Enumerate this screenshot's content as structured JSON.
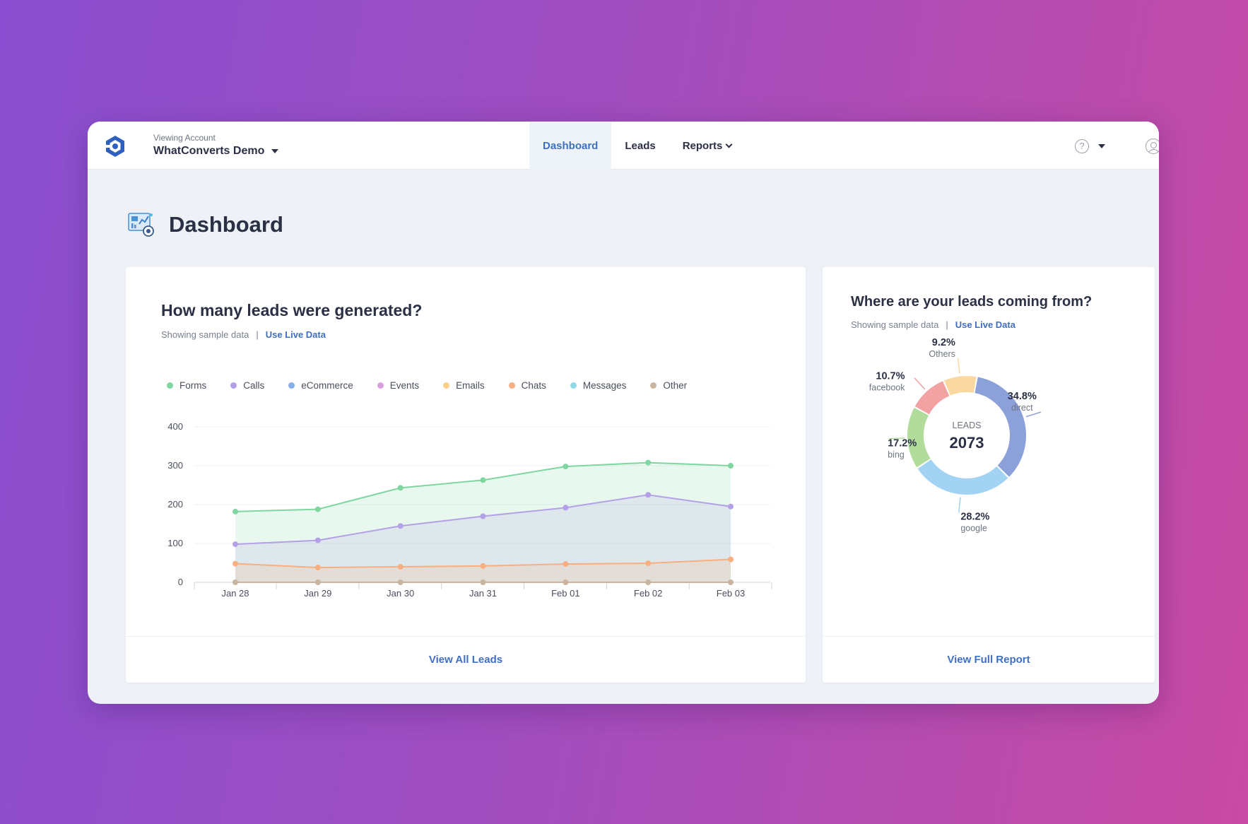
{
  "header": {
    "viewing_label": "Viewing Account",
    "account_name": "WhatConverts Demo",
    "nav": [
      {
        "label": "Dashboard",
        "active": true
      },
      {
        "label": "Leads",
        "active": false
      },
      {
        "label": "Reports",
        "active": false
      }
    ],
    "help_icon": "question-circle-icon",
    "user_icon": "user-circle-icon"
  },
  "page": {
    "title": "Dashboard"
  },
  "leads_card": {
    "title": "How many leads were generated?",
    "subtitle": "Showing sample data",
    "separator": "|",
    "live_link": "Use Live Data",
    "footer_link": "View All Leads"
  },
  "sources_card": {
    "title": "Where are your leads coming from?",
    "subtitle": "Showing sample data",
    "separator": "|",
    "live_link": "Use Live Data",
    "footer_link": "View Full Report"
  },
  "colors": {
    "accent": "#3f6fc1",
    "forms": "#7fd6a0",
    "calls": "#b3a0e6",
    "ecommerce": "#86aee8",
    "events": "#d9a0e0",
    "emails": "#f7cf87",
    "chats": "#f7ae80",
    "messages": "#8fd8e6",
    "other": "#c9b59f"
  },
  "chart_data": [
    {
      "type": "area",
      "categories": [
        "Jan 28",
        "Jan 29",
        "Jan 30",
        "Jan 31",
        "Feb 01",
        "Feb 02",
        "Feb 03"
      ],
      "ylim": [
        0,
        400
      ],
      "yticks": [
        "0",
        "100",
        "200",
        "300",
        "400"
      ],
      "grid": true,
      "legend": "top-left",
      "legend_items": [
        "Forms",
        "Calls",
        "eCommerce",
        "Events",
        "Emails",
        "Chats",
        "Messages",
        "Other"
      ],
      "series": [
        {
          "name": "Forms",
          "color": "#7fd6a0",
          "values": [
            182,
            188,
            243,
            263,
            298,
            308,
            300
          ]
        },
        {
          "name": "Calls",
          "color": "#b3a0e6",
          "values": [
            98,
            108,
            145,
            170,
            192,
            225,
            195
          ]
        },
        {
          "name": "Chats",
          "color": "#f7ae80",
          "values": [
            48,
            38,
            40,
            42,
            47,
            49,
            59
          ]
        },
        {
          "name": "Other",
          "color": "#c9b59f",
          "values": [
            0,
            0,
            0,
            0,
            0,
            0,
            0
          ]
        }
      ]
    },
    {
      "type": "pie",
      "center_label": "LEADS",
      "center_value": "2073",
      "slices": [
        {
          "name": "direct",
          "label": "34.8%",
          "value": 34.8,
          "color": "#8ca0d9"
        },
        {
          "name": "google",
          "label": "28.2%",
          "value": 28.2,
          "color": "#a3d3f2"
        },
        {
          "name": "bing",
          "label": "17.2%",
          "value": 17.2,
          "color": "#b2dc9b"
        },
        {
          "name": "facebook",
          "label": "10.7%",
          "value": 10.7,
          "color": "#f2a2a2"
        },
        {
          "name": "Others",
          "label": "9.2%",
          "value": 9.2,
          "color": "#f9d9a0"
        }
      ]
    }
  ]
}
